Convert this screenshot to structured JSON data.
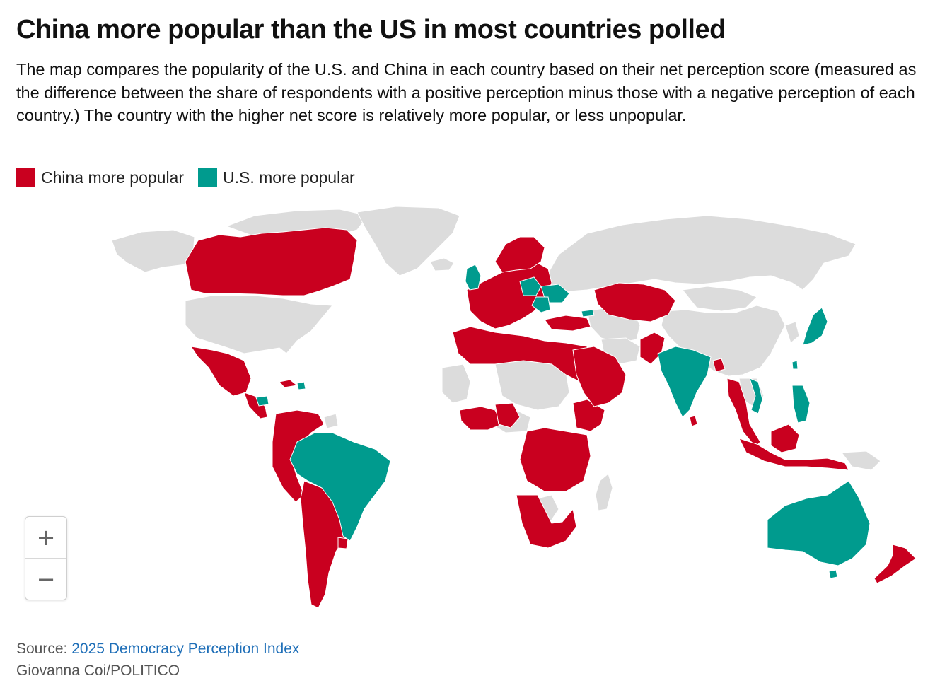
{
  "header": {
    "title": "China more popular than the US in most countries polled",
    "subtitle": "The map compares the popularity of the U.S. and China in each country based on their net perception score (measured as the difference between the share of respondents with a positive perception minus those with a negative perception of each country.) The country with the higher net score is relatively more popular, or less unpopular."
  },
  "legend": {
    "china": {
      "label": "China more popular",
      "color": "#c9001f"
    },
    "us": {
      "label": "U.S. more popular",
      "color": "#009b8e"
    }
  },
  "map": {
    "land_color": "#dcdcdc",
    "zoom_in_label": "+",
    "zoom_out_label": "−"
  },
  "footer": {
    "source_prefix": "Source:",
    "source_link": "2025 Democracy Perception Index",
    "credit": "Giovanna Coi/POLITICO"
  }
}
